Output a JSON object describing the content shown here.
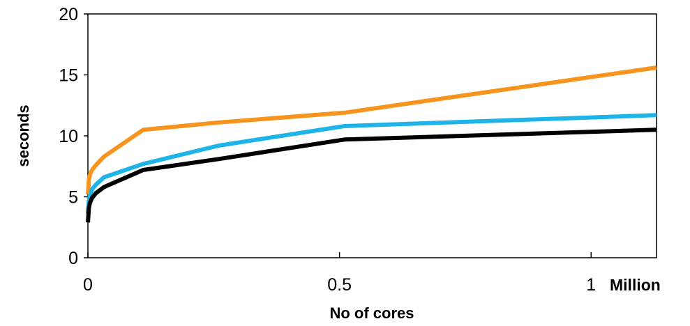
{
  "chart_data": {
    "type": "line",
    "title": "",
    "xlabel": "No of cores",
    "ylabel": "seconds",
    "x_unit_label": "Million",
    "xlim": [
      0,
      1.13
    ],
    "ylim": [
      0,
      20
    ],
    "x_ticks": [
      0,
      0.5,
      1
    ],
    "x_tick_labels": [
      "0",
      "0.5",
      "1"
    ],
    "y_ticks": [
      0,
      5,
      10,
      15,
      20
    ],
    "y_tick_labels": [
      "0",
      "5",
      "10",
      "15",
      "20"
    ],
    "grid": false,
    "legend": "none",
    "series": [
      {
        "color": "#F7941D",
        "x": [
          0,
          0.002,
          0.004,
          0.008,
          0.016,
          0.032,
          0.11,
          0.26,
          0.51,
          1.13
        ],
        "y": [
          5.2,
          6.4,
          6.8,
          7.2,
          7.6,
          8.3,
          10.5,
          11.1,
          11.9,
          15.6
        ]
      },
      {
        "color": "#1EB4E8",
        "x": [
          0,
          0.002,
          0.004,
          0.008,
          0.016,
          0.032,
          0.11,
          0.26,
          0.51,
          1.13
        ],
        "y": [
          3.6,
          4.7,
          5.1,
          5.6,
          6.0,
          6.6,
          7.7,
          9.2,
          10.8,
          11.7
        ]
      },
      {
        "color": "#000000",
        "x": [
          0,
          0.002,
          0.004,
          0.008,
          0.016,
          0.032,
          0.11,
          0.26,
          0.51,
          1.13
        ],
        "y": [
          2.9,
          4.1,
          4.5,
          4.9,
          5.3,
          5.8,
          7.2,
          8.1,
          9.7,
          10.5
        ]
      }
    ]
  }
}
